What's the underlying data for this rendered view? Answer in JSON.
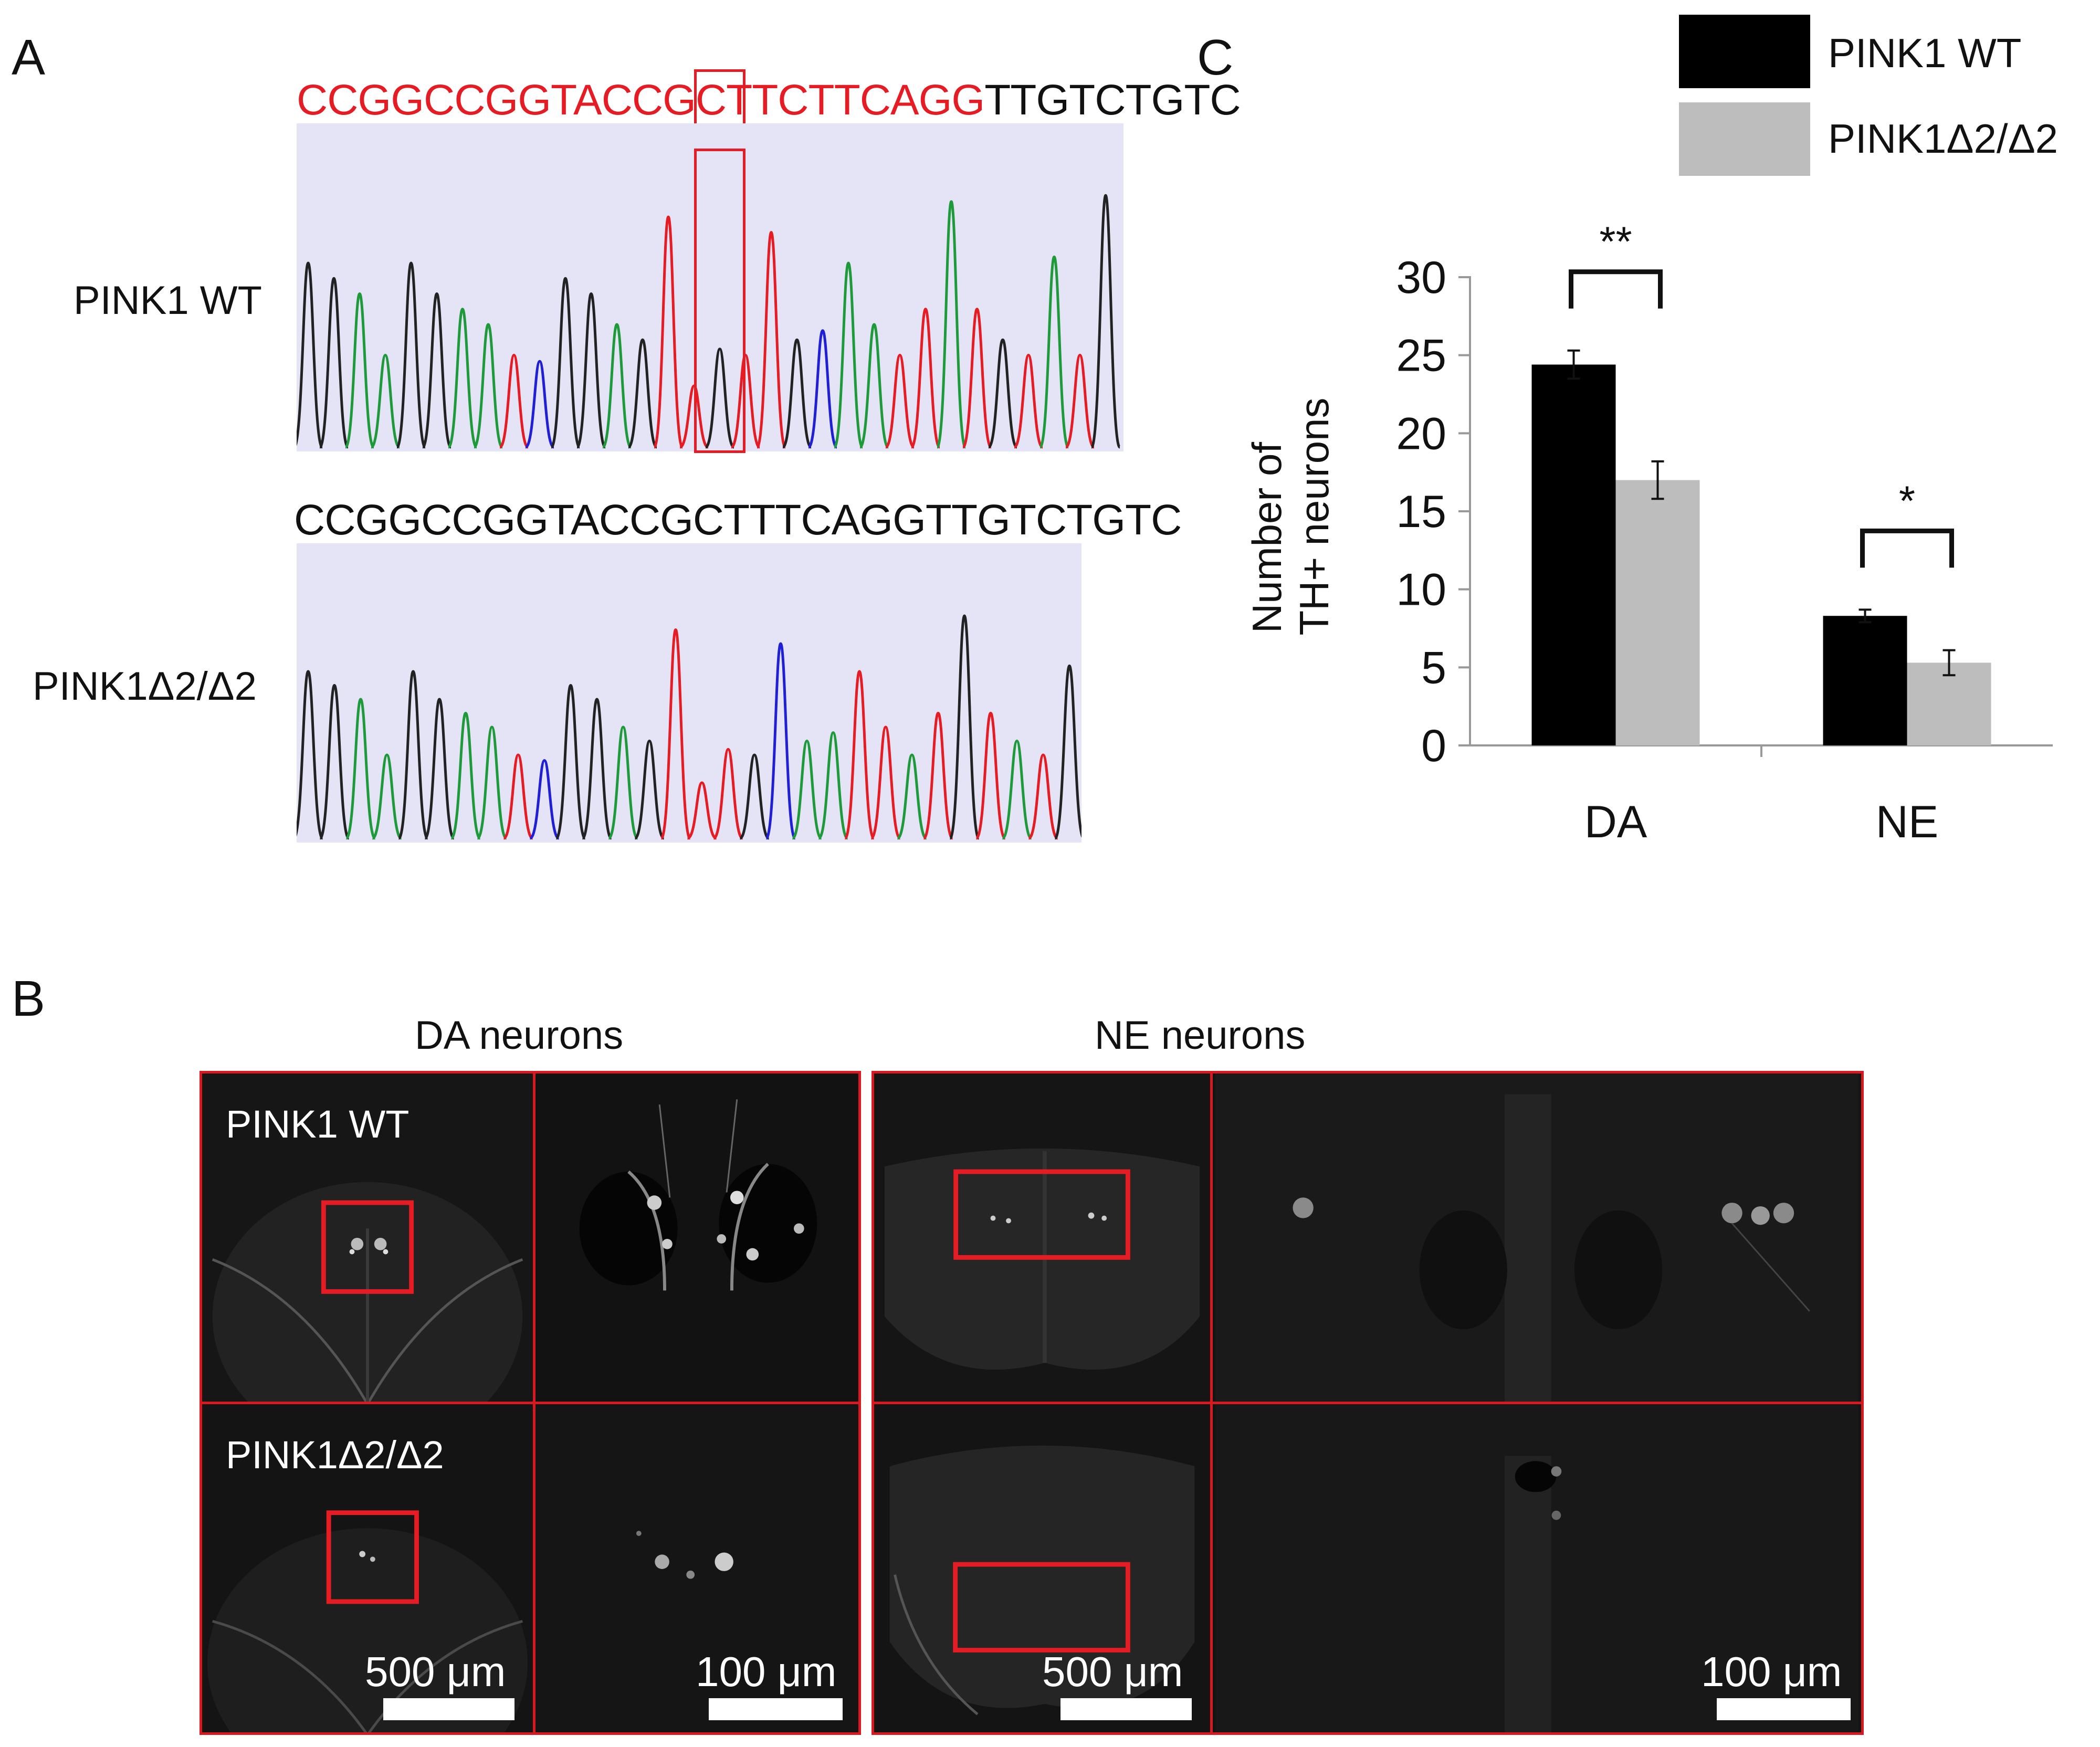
{
  "panelA": {
    "label": "A",
    "wt_sequence_red": "CCGGCCGGTACCGCTTCTTCAGG",
    "wt_sequence_black": "TTGTCTGTC",
    "mut_sequence": "CCGGCCGGTACCGCTTTCAGGTTGTCTGTC",
    "wt_label": "PINK1 WT",
    "mut_label": "PINK1Δ2/Δ2",
    "trace_colors": {
      "A": "#1f1fd6",
      "C": "#222222",
      "G": "#1f9a3a",
      "T": "#e51c23"
    },
    "highlight_color": "#e51c23"
  },
  "panelB": {
    "label": "B",
    "col_da": "DA neurons",
    "col_ne": "NE neurons",
    "row_wt": "PINK1 WT",
    "row_mut": "PINK1Δ2/Δ2",
    "scale_500_da": "500 μm",
    "scale_100_da": "100 μm",
    "scale_500_ne": "500 μm",
    "scale_100_ne": "100 μm",
    "border_color": "#d8191f"
  },
  "panelC": {
    "label": "C",
    "legend": [
      "PINK1 WT",
      "PINK1Δ2/Δ2"
    ],
    "chart_data": {
      "type": "bar",
      "categories": [
        "DA",
        "NE"
      ],
      "series": [
        {
          "name": "PINK1 WT",
          "values": [
            24.4,
            8.3
          ],
          "errors": [
            0.9,
            0.4
          ],
          "color": "#000000"
        },
        {
          "name": "PINK1Δ2/Δ2",
          "values": [
            17.0,
            5.3
          ],
          "errors": [
            1.2,
            0.8
          ],
          "color": "#bdbdbd"
        }
      ],
      "ylabel_line1": "Number of",
      "ylabel_line2": "TH+ neurons",
      "xlabel": "",
      "ylim": [
        0,
        30
      ],
      "yticks": [
        0,
        5,
        10,
        15,
        20,
        25,
        30
      ],
      "significance": [
        "**",
        "*"
      ],
      "grid": false,
      "legend_position": "top-right"
    }
  }
}
